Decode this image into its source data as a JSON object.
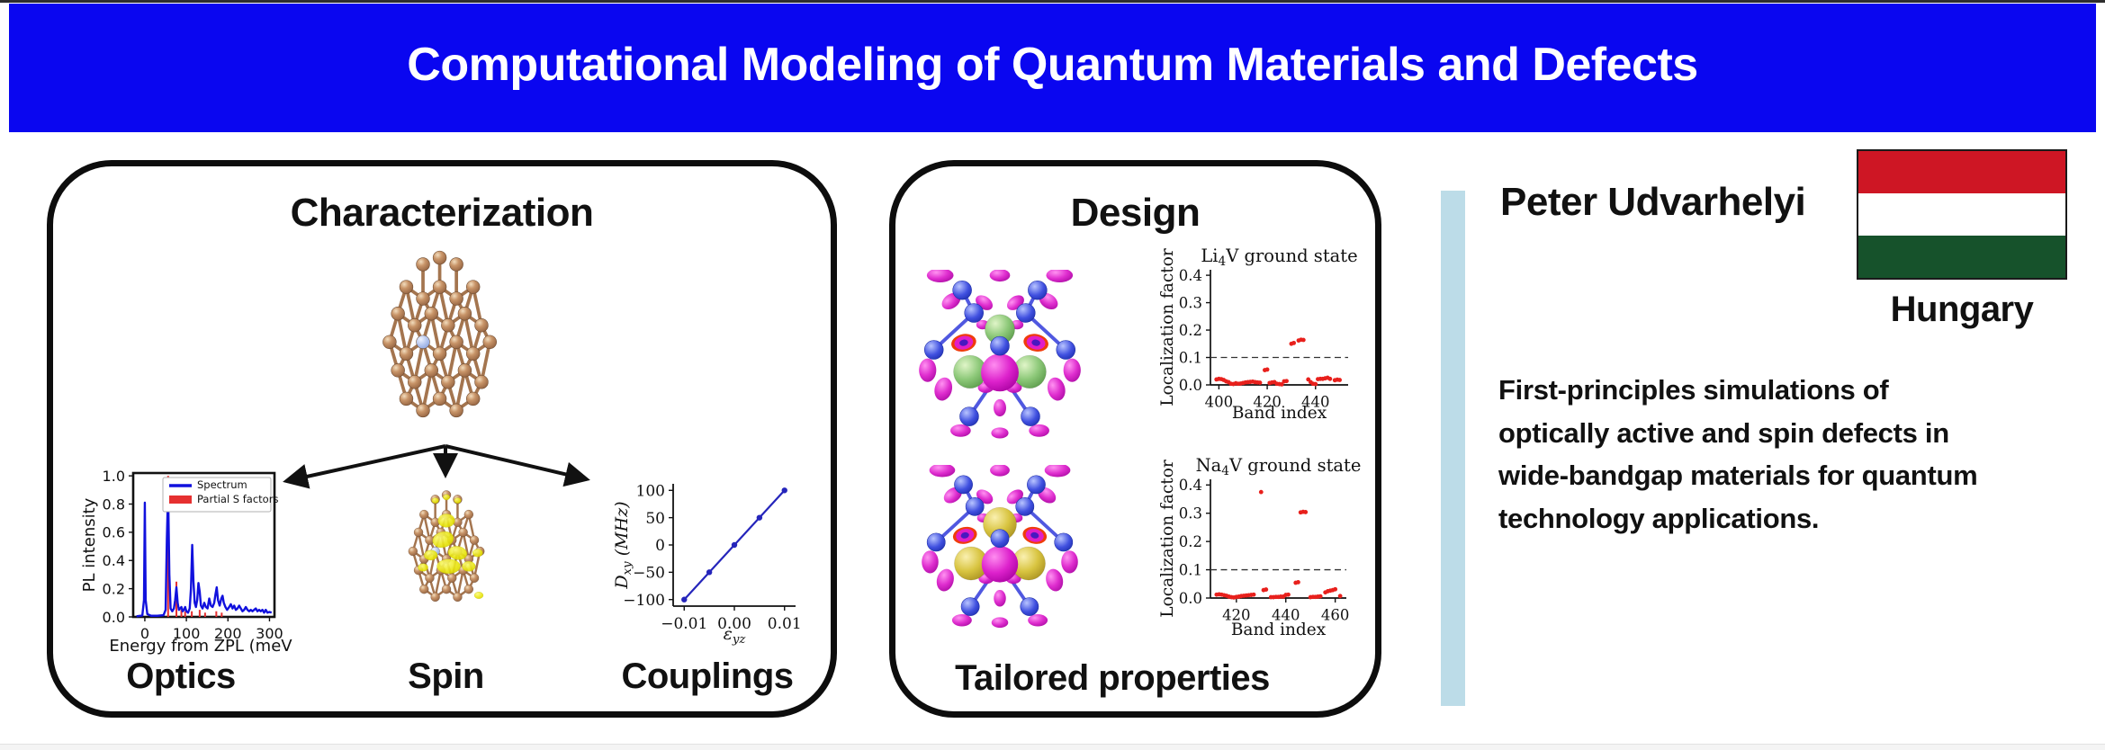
{
  "banner": {
    "title": "Computational Modeling of Quantum Materials and Defects"
  },
  "panels": {
    "characterization": {
      "heading": "Characterization",
      "labels": {
        "optics": "Optics",
        "spin": "Spin",
        "couplings": "Couplings"
      }
    },
    "design": {
      "heading": "Design",
      "caption": "Tailored properties"
    }
  },
  "profile": {
    "name": "Peter Udvarhelyi",
    "country": "Hungary",
    "description_lines": [
      "First-principles simulations of",
      "optically active and spin defects in",
      "wide-bandgap materials for quantum",
      "technology applications."
    ]
  },
  "colors": {
    "banner_bg": "#0a06f0",
    "banner_text": "#ffffff",
    "accent_bar": "#bcdce8",
    "flag_red": "#ce1624",
    "flag_white": "#ffffff",
    "flag_green": "#16522b",
    "box_border": "#0d0d0d",
    "spectrum_blue": "#1111dd",
    "sfactor_red": "#e63030",
    "scatter_red": "#e8201c",
    "couplings_blue": "#2525bb"
  },
  "chart_data": [
    {
      "id": "pl-spectrum",
      "type": "line",
      "font": "sans",
      "fs": 16,
      "box": true,
      "lw": 2.6,
      "xlabel": "Energy from ZPL (meV)",
      "ylabel": "PL intensity",
      "xlim": [
        -28,
        312
      ],
      "ylim": [
        0,
        1.02
      ],
      "xticks": [
        [
          0,
          "0"
        ],
        [
          100,
          "100"
        ],
        [
          200,
          "200"
        ],
        [
          300,
          "300"
        ]
      ],
      "yticks": [
        [
          0,
          "0.0"
        ],
        [
          0.2,
          "0.2"
        ],
        [
          0.4,
          "0.4"
        ],
        [
          0.6,
          "0.6"
        ],
        [
          0.8,
          "0.8"
        ],
        [
          1,
          "1.0"
        ]
      ],
      "legend": [
        {
          "label": "Spectrum",
          "swatch": "line",
          "color": "#1111dd"
        },
        {
          "label": "Partial S factors",
          "swatch": "rect",
          "color": "#e63030"
        }
      ],
      "series": [
        {
          "kind": "stems",
          "color": "#e63030",
          "lw": 2,
          "points": [
            [
              56,
              1.0
            ],
            [
              76,
              0.25
            ],
            [
              88,
              0.05
            ],
            [
              97,
              0.04
            ],
            [
              113,
              0.04
            ],
            [
              132,
              0.05
            ],
            [
              145,
              0.03
            ],
            [
              172,
              0.04
            ],
            [
              185,
              0.03
            ]
          ]
        },
        {
          "kind": "line",
          "color": "#1111dd",
          "lw": 2.4,
          "points": [
            [
              -20,
              0.004
            ],
            [
              -6,
              0.01
            ],
            [
              -2,
              0.12
            ],
            [
              0,
              0.81
            ],
            [
              2,
              0.12
            ],
            [
              6,
              0.02
            ],
            [
              15,
              0.008
            ],
            [
              30,
              0.008
            ],
            [
              45,
              0.012
            ],
            [
              50,
              0.05
            ],
            [
              53,
              0.55
            ],
            [
              56,
              0.9
            ],
            [
              59,
              0.3
            ],
            [
              62,
              0.06
            ],
            [
              66,
              0.04
            ],
            [
              70,
              0.06
            ],
            [
              73,
              0.12
            ],
            [
              76,
              0.21
            ],
            [
              79,
              0.1
            ],
            [
              82,
              0.05
            ],
            [
              85,
              0.06
            ],
            [
              88,
              0.07
            ],
            [
              91,
              0.04
            ],
            [
              94,
              0.05
            ],
            [
              97,
              0.07
            ],
            [
              100,
              0.04
            ],
            [
              104,
              0.03
            ],
            [
              108,
              0.06
            ],
            [
              111,
              0.2
            ],
            [
              114,
              0.51
            ],
            [
              117,
              0.25
            ],
            [
              120,
              0.1
            ],
            [
              123,
              0.07
            ],
            [
              126,
              0.12
            ],
            [
              129,
              0.24
            ],
            [
              132,
              0.18
            ],
            [
              135,
              0.08
            ],
            [
              139,
              0.06
            ],
            [
              143,
              0.1
            ],
            [
              147,
              0.07
            ],
            [
              151,
              0.06
            ],
            [
              155,
              0.13
            ],
            [
              159,
              0.08
            ],
            [
              163,
              0.07
            ],
            [
              167,
              0.1
            ],
            [
              170,
              0.16
            ],
            [
              173,
              0.21
            ],
            [
              176,
              0.12
            ],
            [
              180,
              0.08
            ],
            [
              184,
              0.13
            ],
            [
              187,
              0.15
            ],
            [
              190,
              0.1
            ],
            [
              194,
              0.07
            ],
            [
              198,
              0.05
            ],
            [
              203,
              0.07
            ],
            [
              207,
              0.09
            ],
            [
              211,
              0.06
            ],
            [
              215,
              0.08
            ],
            [
              219,
              0.05
            ],
            [
              223,
              0.06
            ],
            [
              227,
              0.08
            ],
            [
              231,
              0.06
            ],
            [
              235,
              0.04
            ],
            [
              239,
              0.05
            ],
            [
              243,
              0.07
            ],
            [
              247,
              0.05
            ],
            [
              251,
              0.04
            ],
            [
              255,
              0.05
            ],
            [
              259,
              0.04
            ],
            [
              263,
              0.05
            ],
            [
              267,
              0.06
            ],
            [
              271,
              0.04
            ],
            [
              275,
              0.05
            ],
            [
              279,
              0.04
            ],
            [
              283,
              0.05
            ],
            [
              287,
              0.03
            ],
            [
              291,
              0.05
            ],
            [
              295,
              0.03
            ],
            [
              300,
              0.035
            ],
            [
              305,
              0.03
            ]
          ]
        }
      ]
    },
    {
      "id": "couplings",
      "type": "line",
      "font": "serif",
      "fs": 17,
      "box": false,
      "lw": 1.8,
      "xlabel": "ε~yz~",
      "xlabel_italic": true,
      "ylabel": "D~xy~ (MHz)",
      "ylabel_italic": true,
      "xlim": [
        -0.0122,
        0.0122
      ],
      "ylim": [
        -112,
        112
      ],
      "xticks": [
        [
          -0.01,
          "−0.01"
        ],
        [
          0,
          "0.00"
        ],
        [
          0.01,
          "0.01"
        ]
      ],
      "yticks": [
        [
          -100,
          "−100"
        ],
        [
          -50,
          "−50"
        ],
        [
          0,
          "0"
        ],
        [
          50,
          "50"
        ],
        [
          100,
          "100"
        ]
      ],
      "series": [
        {
          "kind": "linemarkers",
          "color": "#2525bb",
          "lw": 2.2,
          "r": 3.2,
          "points": [
            [
              -0.01,
              -100
            ],
            [
              -0.005,
              -50
            ],
            [
              0,
              0
            ],
            [
              0.005,
              50
            ],
            [
              0.01,
              100
            ]
          ]
        }
      ]
    },
    {
      "id": "li4v",
      "type": "scatter",
      "font": "serif",
      "fs": 16.5,
      "box": false,
      "lw": 1.7,
      "title": "Li~4~V ground state",
      "xlabel": "Band index",
      "ylabel": "Localization factor",
      "xlim": [
        396.5,
        453.5
      ],
      "ylim": [
        0,
        0.42
      ],
      "xticks": [
        [
          400,
          "400"
        ],
        [
          420,
          "420"
        ],
        [
          440,
          "440"
        ]
      ],
      "yticks": [
        [
          0,
          "0.0"
        ],
        [
          0.1,
          "0.1"
        ],
        [
          0.2,
          "0.2"
        ],
        [
          0.3,
          "0.3"
        ],
        [
          0.4,
          "0.4"
        ]
      ],
      "hline": 0.1,
      "series": [
        {
          "kind": "scatter",
          "color": "#e8201c",
          "r": 2.4,
          "points": [
            [
              399,
              0.02
            ],
            [
              400,
              0.022
            ],
            [
              401,
              0.021
            ],
            [
              402,
              0.018
            ],
            [
              403,
              0.013
            ],
            [
              404,
              0.01
            ],
            [
              405,
              0.004
            ],
            [
              406,
              0.003
            ],
            [
              407,
              0.006
            ],
            [
              408,
              0.004
            ],
            [
              409,
              0.005
            ],
            [
              410,
              0.007
            ],
            [
              411,
              0.009
            ],
            [
              412,
              0.01
            ],
            [
              413,
              0.011
            ],
            [
              414,
              0.012
            ],
            [
              415,
              0.01
            ],
            [
              416,
              0.009
            ],
            [
              417,
              0.008
            ],
            [
              419,
              0.054
            ],
            [
              420,
              0.056
            ],
            [
              421,
              0.007
            ],
            [
              422,
              0.009
            ],
            [
              423,
              0.01
            ],
            [
              424,
              0.004
            ],
            [
              425,
              0.003
            ],
            [
              426,
              0.002
            ],
            [
              427,
              0.013
            ],
            [
              428,
              0.014
            ],
            [
              430,
              0.15
            ],
            [
              431,
              0.153
            ],
            [
              433,
              0.162
            ],
            [
              434,
              0.165
            ],
            [
              435,
              0.164
            ],
            [
              437,
              0.02
            ],
            [
              438,
              0.01
            ],
            [
              439,
              0.004
            ],
            [
              440,
              0.003
            ],
            [
              441,
              0.021
            ],
            [
              442,
              0.022
            ],
            [
              443,
              0.022
            ],
            [
              444,
              0.024
            ],
            [
              445,
              0.026
            ],
            [
              446,
              0.022
            ],
            [
              448,
              0.017
            ],
            [
              449,
              0.019
            ],
            [
              450,
              0.018
            ]
          ]
        }
      ]
    },
    {
      "id": "na4v",
      "type": "scatter",
      "font": "serif",
      "fs": 16.5,
      "box": false,
      "lw": 1.7,
      "title": "Na~4~V ground state",
      "xlabel": "Band index",
      "ylabel": "Localization factor",
      "xlim": [
        409.5,
        464.5
      ],
      "ylim": [
        0,
        0.42
      ],
      "xticks": [
        [
          420,
          "420"
        ],
        [
          440,
          "440"
        ],
        [
          460,
          "460"
        ]
      ],
      "yticks": [
        [
          0,
          "0.0"
        ],
        [
          0.1,
          "0.1"
        ],
        [
          0.2,
          "0.2"
        ],
        [
          0.3,
          "0.3"
        ],
        [
          0.4,
          "0.4"
        ]
      ],
      "hline": 0.1,
      "series": [
        {
          "kind": "scatter",
          "color": "#e8201c",
          "r": 2.4,
          "points": [
            [
              412,
              0.012
            ],
            [
              413,
              0.013
            ],
            [
              414,
              0.012
            ],
            [
              415,
              0.01
            ],
            [
              416,
              0.008
            ],
            [
              417,
              0.005
            ],
            [
              418,
              0.003
            ],
            [
              419,
              0.002
            ],
            [
              420,
              0.004
            ],
            [
              421,
              0.005
            ],
            [
              422,
              0.007
            ],
            [
              423,
              0.008
            ],
            [
              424,
              0.009
            ],
            [
              425,
              0.01
            ],
            [
              426,
              0.011
            ],
            [
              427,
              0.012
            ],
            [
              430,
              0.375
            ],
            [
              431,
              0.028
            ],
            [
              432,
              0.03
            ],
            [
              434,
              0.003
            ],
            [
              435,
              0.003
            ],
            [
              436,
              0.004
            ],
            [
              437,
              0.004
            ],
            [
              438,
              0.005
            ],
            [
              439,
              0.005
            ],
            [
              440,
              0.011
            ],
            [
              441,
              0.012
            ],
            [
              444,
              0.054
            ],
            [
              445,
              0.056
            ],
            [
              446,
              0.303
            ],
            [
              447,
              0.305
            ],
            [
              448,
              0.304
            ],
            [
              450,
              0.003
            ],
            [
              451,
              0.004
            ],
            [
              452,
              0.004
            ],
            [
              453,
              0.005
            ],
            [
              454,
              0.006
            ],
            [
              456,
              0.02
            ],
            [
              457,
              0.024
            ],
            [
              458,
              0.026
            ],
            [
              459,
              0.028
            ],
            [
              460,
              0.031
            ],
            [
              462,
              0.007
            ]
          ]
        }
      ]
    }
  ]
}
